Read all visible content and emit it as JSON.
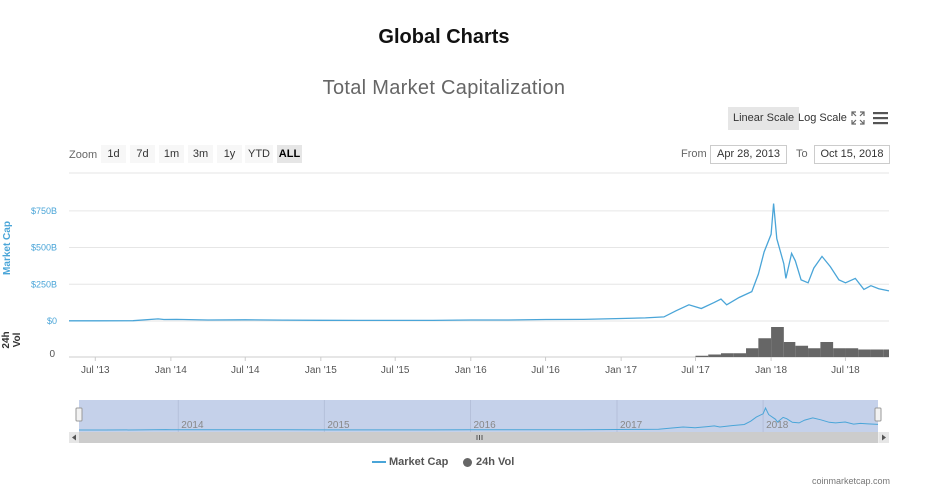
{
  "page_title": "Global Charts",
  "toolbar": {
    "linear_label": "Linear Scale",
    "log_label": "Log Scale",
    "fullscreen_icon": "fullscreen-icon",
    "menu_icon": "hamburger-menu-icon"
  },
  "range_selector": {
    "zoom_label": "Zoom",
    "buttons": [
      "1d",
      "7d",
      "1m",
      "3m",
      "1y",
      "YTD",
      "ALL"
    ],
    "active": "ALL",
    "from_label": "From",
    "from_value": "Apr 28, 2013",
    "to_label": "To",
    "to_value": "Oct 15, 2018"
  },
  "colors": {
    "market_cap": "#4aa5d8",
    "volume": "#666666",
    "navigator_mask": "#c5d1ea"
  },
  "credit": "coinmarketcap.com",
  "chart_data": {
    "type": "line",
    "title": "Total Market Capitalization",
    "xlabel": "",
    "x_range": [
      "2013-04-28",
      "2018-10-15"
    ],
    "x_ticks": [
      "Jul '13",
      "Jan '14",
      "Jul '14",
      "Jan '15",
      "Jul '15",
      "Jan '16",
      "Jul '16",
      "Jan '17",
      "Jul '17",
      "Jan '18",
      "Jul '18"
    ],
    "y_axes": [
      {
        "label": "Market Cap",
        "ticks": [
          "$0",
          "$250B",
          "$500B",
          "$750B"
        ],
        "ylim": [
          0,
          800
        ]
      },
      {
        "label": "24h Vol",
        "ticks": [
          "0"
        ]
      }
    ],
    "unit": "billion USD",
    "series": [
      {
        "name": "Market Cap",
        "type": "line",
        "x": [
          "2013-04-28",
          "2013-07-01",
          "2013-10-01",
          "2013-12-01",
          "2013-12-15",
          "2014-01-15",
          "2014-04-01",
          "2014-07-01",
          "2014-10-01",
          "2015-01-01",
          "2015-04-01",
          "2015-07-01",
          "2015-10-01",
          "2016-01-01",
          "2016-04-01",
          "2016-07-01",
          "2016-10-01",
          "2017-01-01",
          "2017-03-01",
          "2017-04-15",
          "2017-05-15",
          "2017-06-15",
          "2017-07-15",
          "2017-08-15",
          "2017-09-01",
          "2017-09-15",
          "2017-10-15",
          "2017-11-15",
          "2017-12-01",
          "2017-12-15",
          "2018-01-01",
          "2018-01-07",
          "2018-01-15",
          "2018-02-01",
          "2018-02-06",
          "2018-02-20",
          "2018-03-01",
          "2018-03-15",
          "2018-04-01",
          "2018-04-15",
          "2018-05-05",
          "2018-05-25",
          "2018-06-15",
          "2018-07-01",
          "2018-07-25",
          "2018-08-15",
          "2018-09-01",
          "2018-09-20",
          "2018-10-15"
        ],
        "y": [
          1.5,
          1.2,
          2,
          14,
          10,
          11,
          7,
          8,
          6,
          5,
          4,
          4,
          4,
          7,
          7,
          10,
          11,
          17,
          21,
          28,
          70,
          110,
          85,
          125,
          150,
          110,
          160,
          200,
          320,
          470,
          590,
          800,
          560,
          390,
          290,
          460,
          410,
          280,
          260,
          360,
          440,
          370,
          280,
          260,
          290,
          215,
          240,
          220,
          205
        ]
      },
      {
        "name": "24h Vol",
        "type": "column",
        "x": [
          "2017-07",
          "2017-08",
          "2017-09",
          "2017-10",
          "2017-11",
          "2017-12",
          "2018-01",
          "2018-02",
          "2018-03",
          "2018-04",
          "2018-05",
          "2018-06",
          "2018-07",
          "2018-08",
          "2018-09",
          "2018-10"
        ],
        "y": [
          1,
          2,
          3,
          3,
          7,
          15,
          24,
          12,
          9,
          7,
          12,
          7,
          7,
          6,
          6,
          6
        ]
      }
    ],
    "navigator": {
      "x_ticks": [
        "2014",
        "2015",
        "2016",
        "2017",
        "2018"
      ],
      "selection": [
        "2013-04-28",
        "2018-10-15"
      ]
    },
    "legend": [
      "Market Cap",
      "24h Vol"
    ],
    "legend_position": "bottom-center",
    "grid": true
  }
}
